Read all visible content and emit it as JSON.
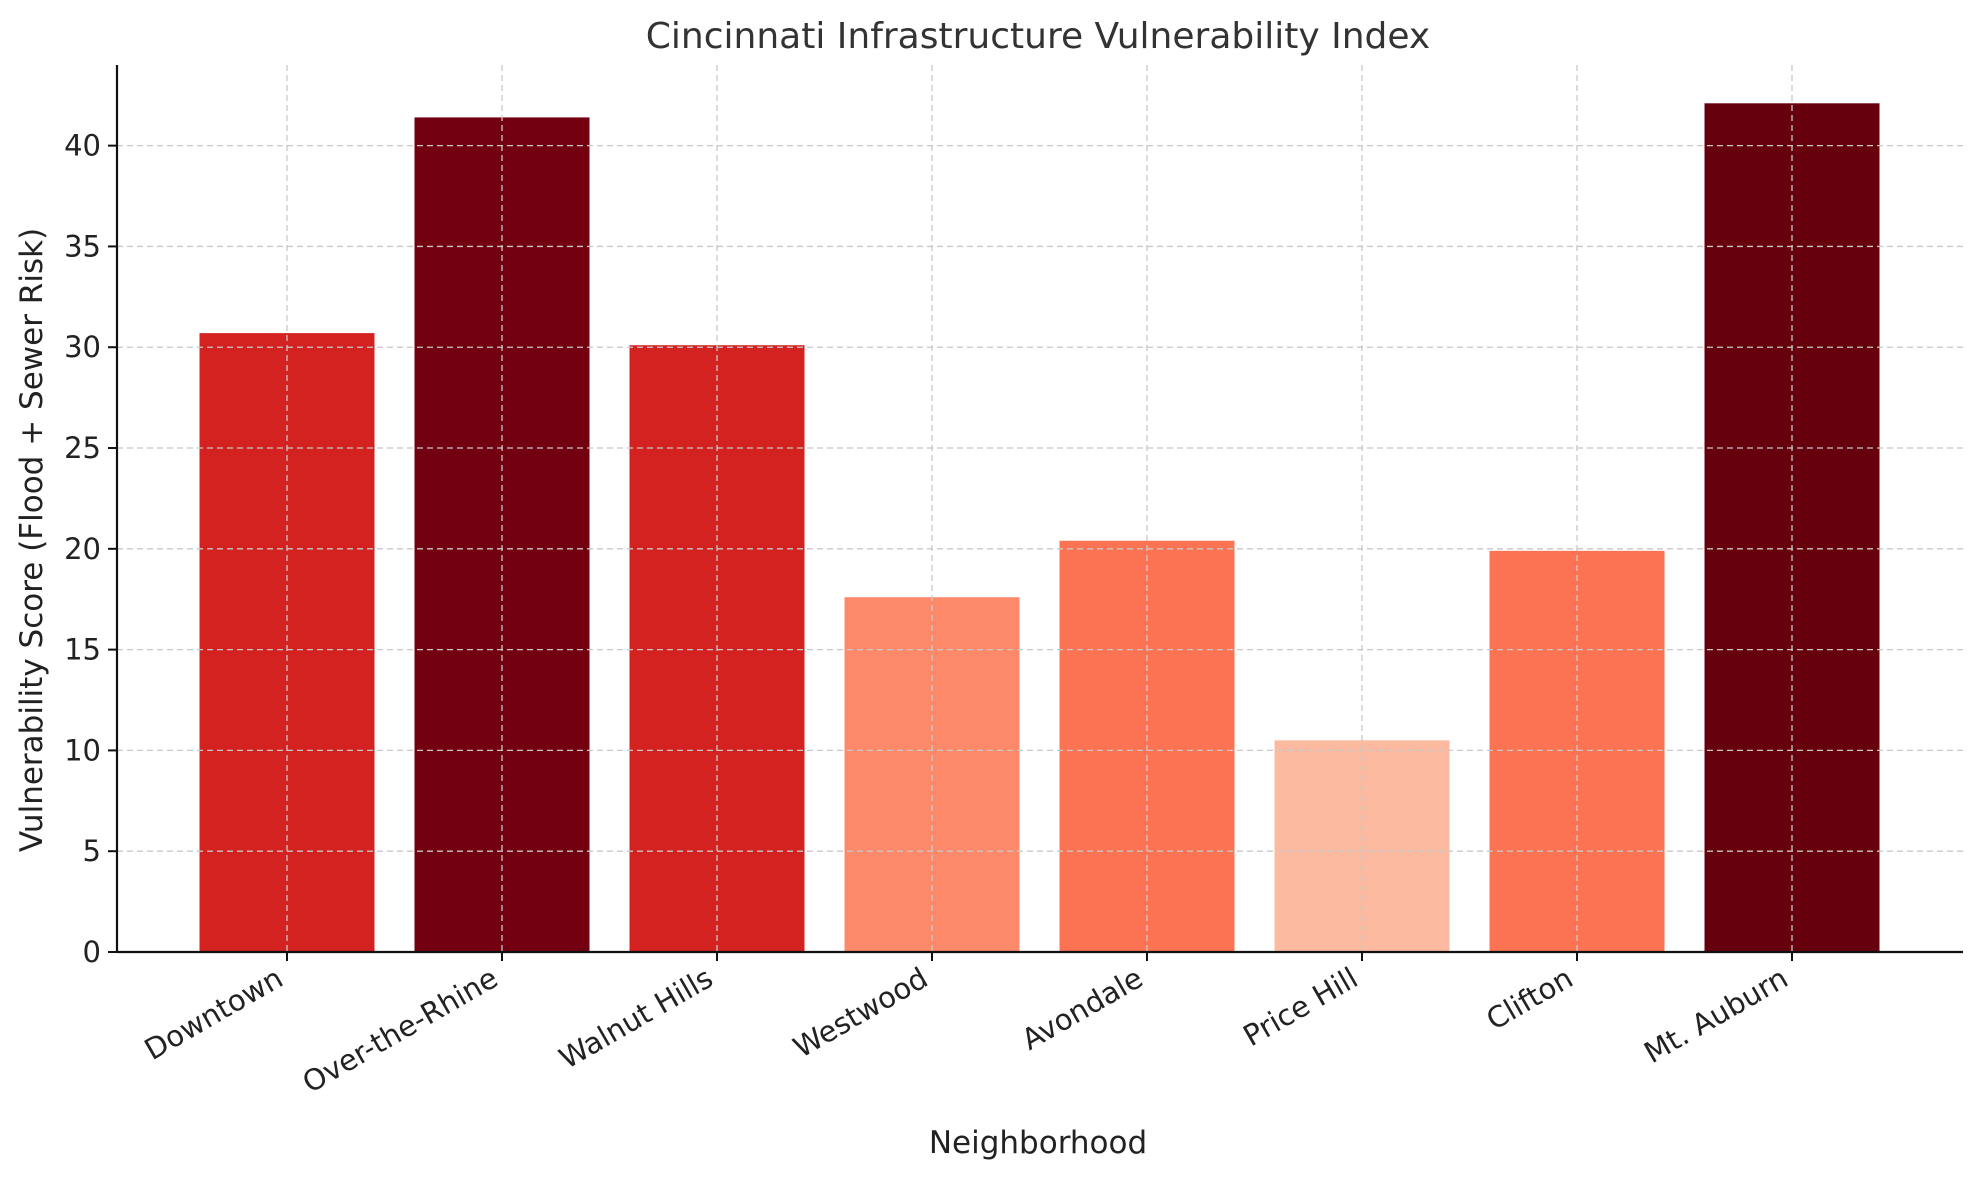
{
  "chart_data": {
    "type": "bar",
    "title": "Cincinnati Infrastructure Vulnerability Index",
    "xlabel": "Neighborhood",
    "ylabel": "Vulnerability Score (Flood + Sewer Risk)",
    "ylim": [
      0,
      44
    ],
    "yticks": [
      0,
      5,
      10,
      15,
      20,
      25,
      30,
      35,
      40
    ],
    "grid": true,
    "categories": [
      "Downtown",
      "Over-the-Rhine",
      "Walnut Hills",
      "Westwood",
      "Avondale",
      "Price Hill",
      "Clifton",
      "Mt. Auburn"
    ],
    "values": [
      30.7,
      41.4,
      30.1,
      17.6,
      20.4,
      10.5,
      19.9,
      42.1
    ],
    "colors": [
      "#d42220",
      "#730010",
      "#d42220",
      "#fc8a6a",
      "#fb7353",
      "#fcbba1",
      "#fb7353",
      "#67000d"
    ]
  }
}
